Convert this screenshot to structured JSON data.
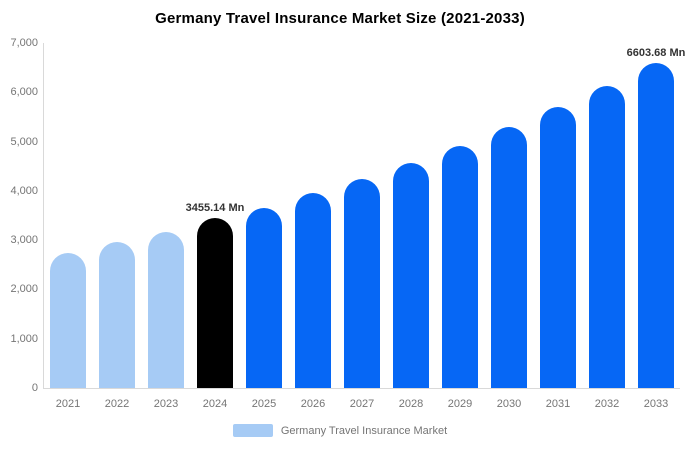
{
  "title": "Germany Travel Insurance Market Size (2021-2033)",
  "colors": {
    "historical": "#A6CBF5",
    "current": "#000000",
    "forecast": "#0667F5",
    "axis_line": "#d9d9d9",
    "axis_text": "#757575",
    "data_label_text": "#333333"
  },
  "legend": {
    "label": "Germany Travel Insurance Market"
  },
  "chart_data": {
    "type": "bar",
    "title": "Germany Travel Insurance Market Size (2021-2033)",
    "xlabel": "",
    "ylabel": "",
    "ylim": [
      0,
      7000
    ],
    "grid": false,
    "legend_position": "bottom",
    "categories": [
      "2021",
      "2022",
      "2023",
      "2024",
      "2025",
      "2026",
      "2027",
      "2028",
      "2029",
      "2030",
      "2031",
      "2032",
      "2033"
    ],
    "values": [
      2740,
      2960,
      3165,
      3455.14,
      3650,
      3955,
      4240,
      4565,
      4910,
      5295,
      5700,
      6130,
      6603.68
    ],
    "bar_roles": [
      "historical",
      "historical",
      "historical",
      "current",
      "forecast",
      "forecast",
      "forecast",
      "forecast",
      "forecast",
      "forecast",
      "forecast",
      "forecast",
      "forecast"
    ],
    "yticks": [
      {
        "value": 7000,
        "label": "7,000"
      },
      {
        "value": 6000,
        "label": "6,000"
      },
      {
        "value": 5000,
        "label": "5,000"
      },
      {
        "value": 4000,
        "label": "4,000"
      },
      {
        "value": 3000,
        "label": "3,000"
      },
      {
        "value": 2000,
        "label": "2,000"
      },
      {
        "value": 1000,
        "label": "1,000"
      },
      {
        "value": 0,
        "label": "0"
      }
    ],
    "data_labels": [
      {
        "category": "2024",
        "text": "3455.14 Mn"
      },
      {
        "category": "2033",
        "text": "6603.68 Mn"
      }
    ]
  }
}
